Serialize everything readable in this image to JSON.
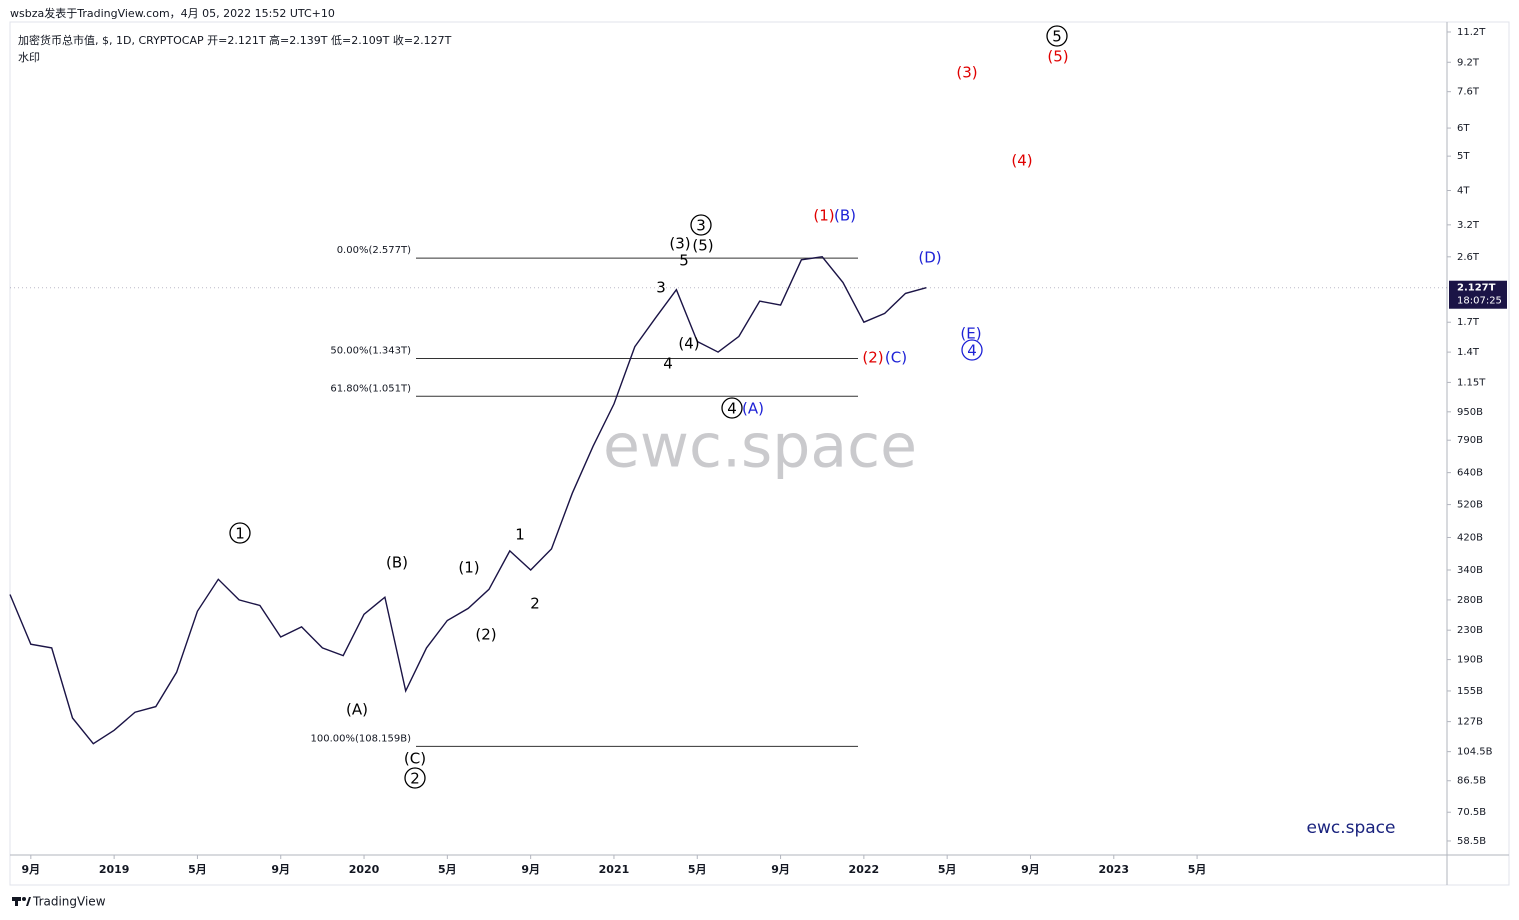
{
  "header": {
    "publisher": "wsbza发表于TradingView.com，4月 05, 2022 15:52 UTC+10",
    "legend": "加密货币总市值, $, 1D, CRYPTOCAP  开=2.121T  高=2.139T  低=2.109T  收=2.127T",
    "watermark_tag": "水印"
  },
  "footer": "TradingView",
  "chart_data": {
    "type": "line",
    "log_scale": true,
    "color": "#1b1446",
    "watermark": "ewc.space",
    "brand": "ewc.space",
    "x": [
      "2018-08",
      "2018-09",
      "2018-10",
      "2018-11",
      "2018-12",
      "2019-01",
      "2019-02",
      "2019-03",
      "2019-04",
      "2019-05",
      "2019-06",
      "2019-07",
      "2019-08",
      "2019-09",
      "2019-10",
      "2019-11",
      "2019-12",
      "2020-01",
      "2020-02",
      "2020-03",
      "2020-04",
      "2020-05",
      "2020-06",
      "2020-07",
      "2020-08",
      "2020-09",
      "2020-10",
      "2020-11",
      "2020-12",
      "2021-01",
      "2021-02",
      "2021-03",
      "2021-04",
      "2021-05",
      "2021-06",
      "2021-07",
      "2021-08",
      "2021-09",
      "2021-10",
      "2021-11",
      "2021-12",
      "2022-01",
      "2022-02",
      "2022-03",
      "2022-04"
    ],
    "values": [
      290000000000,
      210000000000,
      205000000000,
      130000000000,
      110000000000,
      120000000000,
      135000000000,
      140000000000,
      175000000000,
      260000000000,
      320000000000,
      280000000000,
      270000000000,
      220000000000,
      235000000000,
      205000000000,
      195000000000,
      255000000000,
      285000000000,
      155000000000,
      205000000000,
      245000000000,
      265000000000,
      300000000000,
      385000000000,
      340000000000,
      390000000000,
      560000000000,
      760000000000,
      1000000000000,
      1450000000000,
      1750000000000,
      2100000000000,
      1500000000000,
      1400000000000,
      1550000000000,
      1950000000000,
      1900000000000,
      2550000000000,
      2600000000000,
      2200000000000,
      1700000000000,
      1800000000000,
      2050000000000,
      2127000000000
    ],
    "xlim": [
      "2018-08",
      "2024-05"
    ],
    "xticks": [
      {
        "value": "2018-09",
        "label": "9月"
      },
      {
        "value": "2019-01",
        "label": "2019"
      },
      {
        "value": "2019-05",
        "label": "5月"
      },
      {
        "value": "2019-09",
        "label": "9月"
      },
      {
        "value": "2020-01",
        "label": "2020"
      },
      {
        "value": "2020-05",
        "label": "5月"
      },
      {
        "value": "2020-09",
        "label": "9月"
      },
      {
        "value": "2021-01",
        "label": "2021"
      },
      {
        "value": "2021-05",
        "label": "5月"
      },
      {
        "value": "2021-09",
        "label": "9月"
      },
      {
        "value": "2022-01",
        "label": "2022"
      },
      {
        "value": "2022-05",
        "label": "5月"
      },
      {
        "value": "2022-09",
        "label": "9月"
      },
      {
        "value": "2023-01",
        "label": "2023"
      },
      {
        "value": "2023-05",
        "label": "5月"
      }
    ],
    "ylim": [
      53400000000,
      11950000000000
    ],
    "yticks": [
      {
        "value": 11200000000000,
        "label": "11.2T"
      },
      {
        "value": 9200000000000,
        "label": "9.2T"
      },
      {
        "value": 7600000000000,
        "label": "7.6T"
      },
      {
        "value": 6000000000000,
        "label": "6T"
      },
      {
        "value": 5000000000000,
        "label": "5T"
      },
      {
        "value": 4000000000000,
        "label": "4T"
      },
      {
        "value": 3200000000000,
        "label": "3.2T"
      },
      {
        "value": 2600000000000,
        "label": "2.6T"
      },
      {
        "value": 1700000000000,
        "label": "1.7T"
      },
      {
        "value": 1400000000000,
        "label": "1.4T"
      },
      {
        "value": 1150000000000,
        "label": "1.15T"
      },
      {
        "value": 950000000000,
        "label": "950B"
      },
      {
        "value": 790000000000,
        "label": "790B"
      },
      {
        "value": 640000000000,
        "label": "640B"
      },
      {
        "value": 520000000000,
        "label": "520B"
      },
      {
        "value": 420000000000,
        "label": "420B"
      },
      {
        "value": 340000000000,
        "label": "340B"
      },
      {
        "value": 280000000000,
        "label": "280B"
      },
      {
        "value": 230000000000,
        "label": "230B"
      },
      {
        "value": 190000000000,
        "label": "190B"
      },
      {
        "value": 155000000000,
        "label": "155B"
      },
      {
        "value": 127000000000,
        "label": "127B"
      },
      {
        "value": 104500000000,
        "label": "104.5B"
      },
      {
        "value": 86500000000,
        "label": "86.5B"
      },
      {
        "value": 70500000000,
        "label": "70.5B"
      },
      {
        "value": 58500000000,
        "label": "58.5B"
      }
    ],
    "last_price": {
      "value": 2127000000000,
      "label": "2.127T"
    },
    "countdown": "18:07:25",
    "fib_levels": [
      {
        "value": 2577000000000,
        "label": "0.00%(2.577T)"
      },
      {
        "value": 1343000000000,
        "label": "50.00%(1.343T)"
      },
      {
        "value": 1051000000000,
        "label": "61.80%(1.051T)"
      },
      {
        "value": 108159000000,
        "label": "100.00%(108.159B)"
      }
    ],
    "annotations": [
      {
        "text": "1",
        "color": "#000000",
        "circled": true
      },
      {
        "text": "(B)",
        "color": "#000000",
        "circled": false
      },
      {
        "text": "(1)",
        "color": "#000000",
        "circled": false
      },
      {
        "text": "1",
        "color": "#000000",
        "circled": false
      },
      {
        "text": "2",
        "color": "#000000",
        "circled": false
      },
      {
        "text": "(2)",
        "color": "#000000",
        "circled": false
      },
      {
        "text": "(A)",
        "color": "#000000",
        "circled": false
      },
      {
        "text": "(C)",
        "color": "#000000",
        "circled": false
      },
      {
        "text": "2",
        "color": "#000000",
        "circled": true
      },
      {
        "text": "3",
        "color": "#000000",
        "circled": false
      },
      {
        "text": "5",
        "color": "#000000",
        "circled": false
      },
      {
        "text": "(3)",
        "color": "#000000",
        "circled": false
      },
      {
        "text": "(5)",
        "color": "#000000",
        "circled": false
      },
      {
        "text": "3",
        "color": "#000000",
        "circled": true
      },
      {
        "text": "(4)",
        "color": "#000000",
        "circled": false
      },
      {
        "text": "4",
        "color": "#000000",
        "circled": false
      },
      {
        "text": "4",
        "color": "#000000",
        "circled": true
      },
      {
        "text": "(A)",
        "color": "#1e22d6",
        "circled": false
      },
      {
        "text": "(1)",
        "color": "#e00000",
        "circled": false
      },
      {
        "text": "(B)",
        "color": "#1e22d6",
        "circled": false
      },
      {
        "text": "(D)",
        "color": "#1e22d6",
        "circled": false
      },
      {
        "text": "(2)",
        "color": "#e00000",
        "circled": false
      },
      {
        "text": "(C)",
        "color": "#1e22d6",
        "circled": false
      },
      {
        "text": "(E)",
        "color": "#1e22d6",
        "circled": false
      },
      {
        "text": "4",
        "color": "#1e22d6",
        "circled": true
      },
      {
        "text": "(3)",
        "color": "#e00000",
        "circled": false
      },
      {
        "text": "5",
        "color": "#000000",
        "circled": true
      },
      {
        "text": "(5)",
        "color": "#e00000",
        "circled": false
      },
      {
        "text": "(4)",
        "color": "#e00000",
        "circled": false
      }
    ]
  }
}
